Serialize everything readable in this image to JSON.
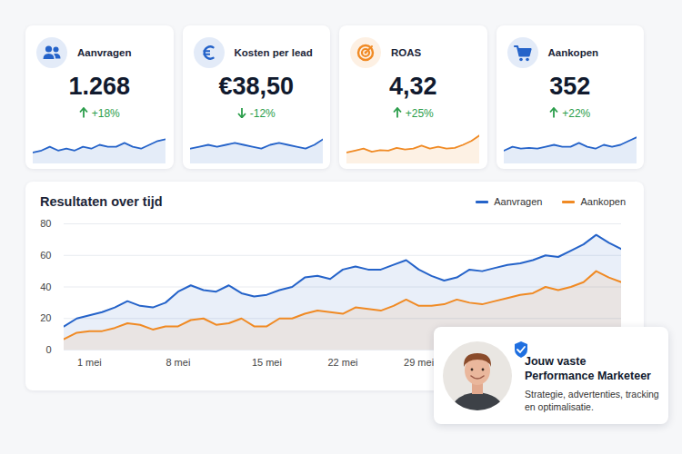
{
  "cards": [
    {
      "title": "Aanvragen",
      "value": "1.268",
      "change": "+18%",
      "direction": "up",
      "color": "#2563c9",
      "sparkline": {
        "values": [
          3,
          3.5,
          4.5,
          3.5,
          4,
          3.5,
          4.5,
          4,
          5,
          4.5,
          4.5,
          5.5,
          4.5,
          4,
          5,
          6,
          6.5
        ],
        "ylim": [
          0,
          10
        ]
      }
    },
    {
      "title": "Kosten per lead",
      "value": "€38,50",
      "change": "-12%",
      "direction": "down",
      "color": "#2563c9",
      "sparkline": {
        "values": [
          4,
          4.5,
          5,
          4.5,
          5,
          5.5,
          5,
          4.5,
          4,
          5,
          5.5,
          5,
          4.5,
          4,
          5,
          6.5
        ],
        "ylim": [
          0,
          10
        ]
      }
    },
    {
      "title": "ROAS",
      "value": "4,32",
      "change": "+25%",
      "direction": "up",
      "color": "#f08a24",
      "sparkline": {
        "values": [
          3,
          3.5,
          4,
          3.2,
          3.6,
          3.5,
          4.2,
          3.8,
          4,
          4.8,
          4,
          4.5,
          4,
          4.2,
          5,
          6,
          7.5
        ],
        "ylim": [
          0,
          10
        ]
      }
    },
    {
      "title": "Aankopen",
      "value": "352",
      "change": "+22%",
      "direction": "up",
      "color": "#2563c9",
      "sparkline": {
        "values": [
          3.5,
          4.5,
          4,
          4.2,
          4,
          4.5,
          5,
          4.5,
          4.5,
          5.5,
          4.5,
          4,
          5,
          4.5,
          5,
          6,
          7
        ],
        "ylim": [
          0,
          10
        ]
      }
    }
  ],
  "chart_data": {
    "type": "line",
    "title": "Resultaten over tijd",
    "categories": [
      null,
      null,
      "1 mei",
      null,
      null,
      null,
      null,
      null,
      null,
      "8 mei",
      null,
      null,
      null,
      null,
      null,
      null,
      "15 mei",
      null,
      null,
      null,
      null,
      null,
      "22 mei",
      null,
      null,
      null,
      null,
      null,
      "29 mei",
      null,
      null,
      null,
      null,
      null,
      null,
      null,
      null,
      null,
      null,
      null,
      null,
      null,
      null,
      null,
      null
    ],
    "series": [
      {
        "name": "Aanvragen",
        "color": "#2563c9",
        "values": [
          15,
          20,
          22,
          24,
          27,
          31,
          28,
          27,
          30,
          37,
          41,
          38,
          37,
          41,
          36,
          34,
          35,
          38,
          40,
          46,
          47,
          45,
          51,
          53,
          51,
          51,
          54,
          57,
          51,
          47,
          44,
          46,
          51,
          50,
          52,
          54,
          55,
          57,
          60,
          59,
          63,
          67,
          73,
          68,
          64
        ]
      },
      {
        "name": "Aankopen",
        "color": "#f08a24",
        "values": [
          7,
          11,
          12,
          12,
          14,
          17,
          16,
          13,
          15,
          15,
          19,
          20,
          16,
          17,
          20,
          15,
          15,
          20,
          20,
          23,
          25,
          24,
          23,
          27,
          26,
          25,
          28,
          32,
          28,
          28,
          29,
          32,
          30,
          29,
          31,
          33,
          35,
          36,
          40,
          38,
          40,
          43,
          50,
          46,
          43
        ]
      }
    ],
    "ylim": [
      0,
      80
    ],
    "yticks": [
      0,
      20,
      40,
      60,
      80
    ],
    "grid": true,
    "legend": "top-right"
  },
  "profile": {
    "title": "Jouw vaste Performance Marketeer",
    "subtitle": "Strategie, advertenties, tracking en optimalisatie."
  }
}
